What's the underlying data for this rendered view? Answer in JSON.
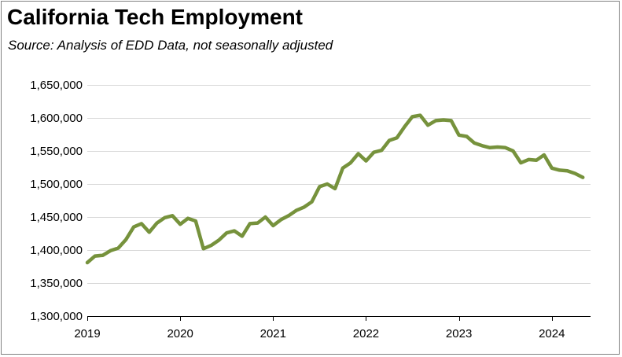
{
  "header": {
    "title": "California Tech Employment",
    "subtitle": "Source:  Analysis of EDD Data, not seasonally adjusted"
  },
  "colors": {
    "line": "#76923c",
    "grid": "#d9d9d9",
    "axis": "#000000",
    "frame": "#808080"
  },
  "chart_data": {
    "type": "line",
    "title": "California Tech Employment",
    "subtitle": "Source:  Analysis of EDD Data, not seasonally adjusted",
    "xlabel": "",
    "ylabel": "",
    "ylim": [
      1300000,
      1650000
    ],
    "yticks": [
      1300000,
      1350000,
      1400000,
      1450000,
      1500000,
      1550000,
      1600000,
      1650000
    ],
    "ytick_labels": [
      "1,300,000",
      "1,350,000",
      "1,400,000",
      "1,450,000",
      "1,500,000",
      "1,550,000",
      "1,600,000",
      "1,650,000"
    ],
    "xlim": [
      0,
      65
    ],
    "xticks": [
      0,
      12,
      24,
      36,
      48,
      60
    ],
    "xtick_labels": [
      "2019",
      "2020",
      "2021",
      "2022",
      "2023",
      "2024"
    ],
    "grid": "horizontal",
    "legend": "none",
    "series": [
      {
        "name": "California Tech Employment",
        "x": [
          0,
          1,
          2,
          3,
          4,
          5,
          6,
          7,
          8,
          9,
          10,
          11,
          12,
          13,
          14,
          15,
          16,
          17,
          18,
          19,
          20,
          21,
          22,
          23,
          24,
          25,
          26,
          27,
          28,
          29,
          30,
          31,
          32,
          33,
          34,
          35,
          36,
          37,
          38,
          39,
          40,
          41,
          42,
          43,
          44,
          45,
          46,
          47,
          48,
          49,
          50,
          51,
          52,
          53,
          54,
          55,
          56,
          57,
          58,
          59,
          60,
          61,
          62,
          63,
          64
        ],
        "values": [
          1381000,
          1391000,
          1392000,
          1399000,
          1403000,
          1416000,
          1435000,
          1440000,
          1427000,
          1441000,
          1449000,
          1452000,
          1439000,
          1448000,
          1444000,
          1402000,
          1407000,
          1415000,
          1426000,
          1429000,
          1421000,
          1440000,
          1441000,
          1450000,
          1437000,
          1446000,
          1452000,
          1460000,
          1465000,
          1473000,
          1496000,
          1500000,
          1493000,
          1524000,
          1532000,
          1546000,
          1535000,
          1548000,
          1551000,
          1566000,
          1570000,
          1587000,
          1602000,
          1604000,
          1589000,
          1596000,
          1597000,
          1596000,
          1574000,
          1572000,
          1562000,
          1558000,
          1555000,
          1556000,
          1555000,
          1550000,
          1532000,
          1537000,
          1536000,
          1544000,
          1524000,
          1521000,
          1520000,
          1516000,
          1510000
        ]
      }
    ]
  }
}
